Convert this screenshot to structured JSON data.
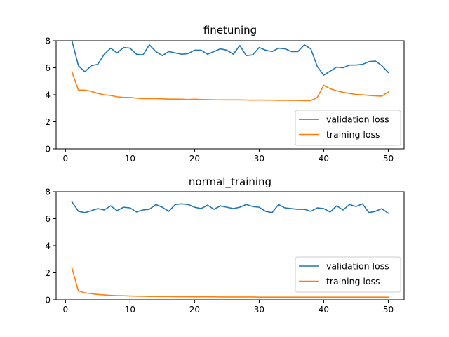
{
  "chart_data": [
    {
      "type": "line",
      "title": "finetuning",
      "xlabel": "",
      "ylabel": "",
      "xlim": [
        -1.45,
        52.45
      ],
      "ylim": [
        0,
        8
      ],
      "x_ticks": [
        0,
        10,
        20,
        30,
        40,
        50
      ],
      "y_ticks": [
        0,
        2,
        4,
        6,
        8
      ],
      "grid": false,
      "legend_position": "lower-right",
      "x": [
        1,
        2,
        3,
        4,
        5,
        6,
        7,
        8,
        9,
        10,
        11,
        12,
        13,
        14,
        15,
        16,
        17,
        18,
        19,
        20,
        21,
        22,
        23,
        24,
        25,
        26,
        27,
        28,
        29,
        30,
        31,
        32,
        33,
        34,
        35,
        36,
        37,
        38,
        39,
        40,
        41,
        42,
        43,
        44,
        45,
        46,
        47,
        48,
        49,
        50
      ],
      "series": [
        {
          "name": "validation loss",
          "color": "#1f77b4",
          "values": [
            8.0,
            6.15,
            5.7,
            6.15,
            6.25,
            7.0,
            7.45,
            7.1,
            7.5,
            7.45,
            7.0,
            6.95,
            7.7,
            7.2,
            6.9,
            7.2,
            7.1,
            7.0,
            7.05,
            7.3,
            7.3,
            7.0,
            7.2,
            7.4,
            7.3,
            7.0,
            7.65,
            6.9,
            6.95,
            7.5,
            7.3,
            7.2,
            7.45,
            7.4,
            7.2,
            7.2,
            7.7,
            7.4,
            6.1,
            5.45,
            5.75,
            6.05,
            6.0,
            6.2,
            6.2,
            6.25,
            6.45,
            6.5,
            6.15,
            5.65
          ]
        },
        {
          "name": "training loss",
          "color": "#ff7f0e",
          "values": [
            5.7,
            4.35,
            4.35,
            4.25,
            4.1,
            4.0,
            3.95,
            3.85,
            3.8,
            3.8,
            3.75,
            3.72,
            3.72,
            3.72,
            3.7,
            3.68,
            3.68,
            3.67,
            3.65,
            3.67,
            3.65,
            3.64,
            3.63,
            3.62,
            3.62,
            3.62,
            3.62,
            3.61,
            3.6,
            3.61,
            3.6,
            3.6,
            3.59,
            3.59,
            3.58,
            3.58,
            3.57,
            3.57,
            3.8,
            4.7,
            4.45,
            4.3,
            4.18,
            4.1,
            4.02,
            4.0,
            3.95,
            3.92,
            3.9,
            4.2
          ]
        }
      ]
    },
    {
      "type": "line",
      "title": "normal_training",
      "xlabel": "",
      "ylabel": "",
      "xlim": [
        -1.45,
        52.45
      ],
      "ylim": [
        0,
        8
      ],
      "x_ticks": [
        0,
        10,
        20,
        30,
        40,
        50
      ],
      "y_ticks": [
        0,
        2,
        4,
        6,
        8
      ],
      "grid": false,
      "legend_position": "right",
      "x": [
        1,
        2,
        3,
        4,
        5,
        6,
        7,
        8,
        9,
        10,
        11,
        12,
        13,
        14,
        15,
        16,
        17,
        18,
        19,
        20,
        21,
        22,
        23,
        24,
        25,
        26,
        27,
        28,
        29,
        30,
        31,
        32,
        33,
        34,
        35,
        36,
        37,
        38,
        39,
        40,
        41,
        42,
        43,
        44,
        45,
        46,
        47,
        48,
        49,
        50
      ],
      "series": [
        {
          "name": "validation loss",
          "color": "#1f77b4",
          "values": [
            7.25,
            6.55,
            6.45,
            6.6,
            6.75,
            6.65,
            6.95,
            6.6,
            6.85,
            6.8,
            6.5,
            6.65,
            6.7,
            7.05,
            6.85,
            6.55,
            7.05,
            7.1,
            7.05,
            6.85,
            6.75,
            7.0,
            6.7,
            6.95,
            6.85,
            6.75,
            6.85,
            7.05,
            6.9,
            6.85,
            6.55,
            6.45,
            7.05,
            6.8,
            6.75,
            6.7,
            6.7,
            6.55,
            6.8,
            6.75,
            6.5,
            6.95,
            6.65,
            7.05,
            6.9,
            7.1,
            6.45,
            6.55,
            6.75,
            6.4
          ]
        },
        {
          "name": "training loss",
          "color": "#ff7f0e",
          "values": [
            2.35,
            0.65,
            0.52,
            0.45,
            0.4,
            0.36,
            0.33,
            0.31,
            0.3,
            0.28,
            0.27,
            0.26,
            0.25,
            0.25,
            0.24,
            0.24,
            0.23,
            0.23,
            0.23,
            0.22,
            0.22,
            0.22,
            0.22,
            0.21,
            0.21,
            0.21,
            0.21,
            0.21,
            0.21,
            0.2,
            0.2,
            0.2,
            0.2,
            0.2,
            0.2,
            0.2,
            0.2,
            0.2,
            0.2,
            0.2,
            0.2,
            0.2,
            0.2,
            0.2,
            0.2,
            0.2,
            0.2,
            0.2,
            0.2,
            0.2
          ]
        }
      ]
    }
  ]
}
